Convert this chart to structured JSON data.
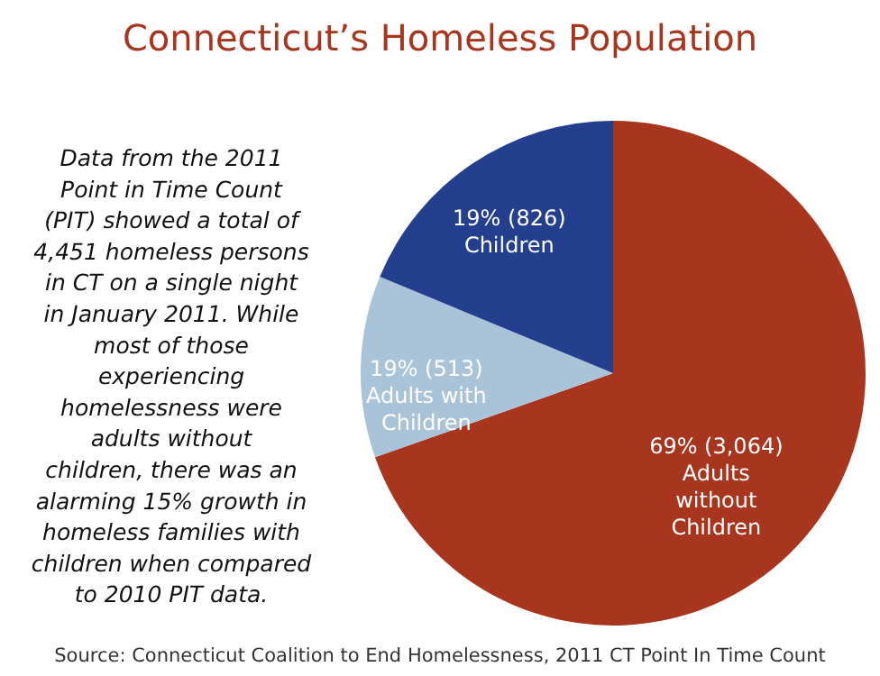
{
  "chart_data": {
    "type": "pie",
    "title": "Connecticut’s Homeless Population",
    "categories": [
      "Adults without Children",
      "Adults with Children",
      "Children"
    ],
    "values": [
      3064,
      513,
      826
    ],
    "value_labels": [
      "69% (3,064)",
      "19% (513)",
      "19% (826)"
    ],
    "colors": [
      "#a8351d",
      "#a9c3d9",
      "#233f8e"
    ],
    "legend": false,
    "annotations": [
      "Data from the 2011 Point in Time Count (PIT) showed a total of 4,451 homeless persons in CT on a single night in January 2011. While most of those experiencing homelessness were adults without children, there was an alarming 15% growth in homeless families with children when compared to 2010 PIT data.",
      "Source: Connecticut Coalition to End Homelessness, 2011 CT Point In Time Count"
    ]
  }
}
